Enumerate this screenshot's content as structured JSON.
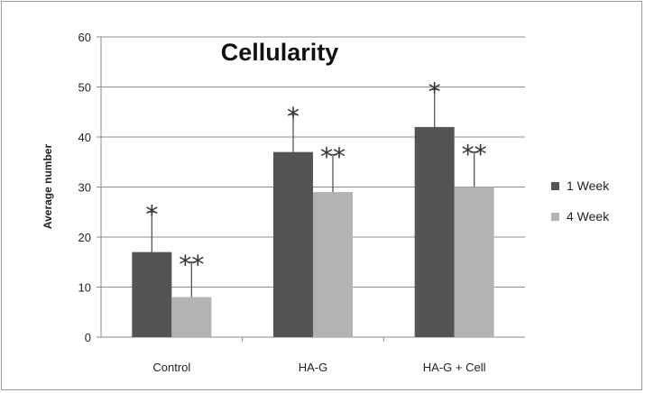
{
  "chart_data": {
    "type": "bar",
    "title": "Cellularity",
    "xlabel": "",
    "ylabel": "Average number",
    "ylim": [
      0,
      60
    ],
    "yticks": [
      0,
      10,
      20,
      30,
      40,
      50,
      60
    ],
    "grid": true,
    "legend_position": "right",
    "categories": [
      "Control",
      "HA-G",
      "HA-G + Cell"
    ],
    "series": [
      {
        "name": "1 Week",
        "color": "#545454",
        "values": [
          17,
          37,
          42
        ],
        "error": [
          8,
          7.5,
          7.5
        ],
        "annotations": [
          "*",
          "*",
          "*"
        ]
      },
      {
        "name": "4 Week",
        "color": "#b3b3b3",
        "values": [
          8,
          29,
          30
        ],
        "error": [
          7,
          7.5,
          7
        ],
        "annotations": [
          "**",
          "**",
          "**"
        ]
      }
    ]
  }
}
